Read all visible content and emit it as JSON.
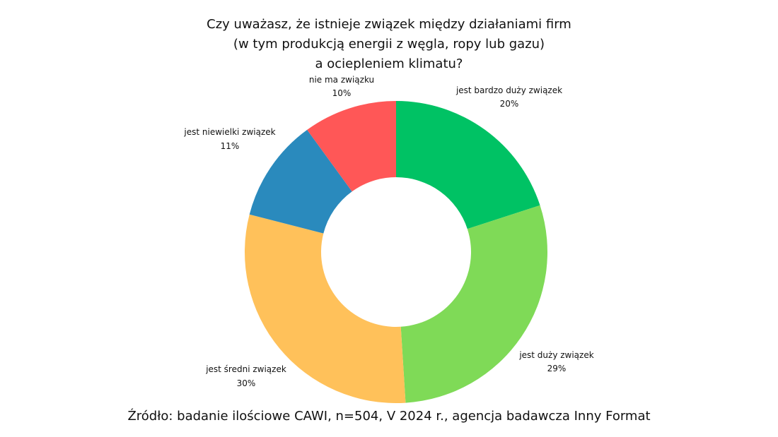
{
  "chart_data": {
    "type": "pie",
    "donut": true,
    "title_lines": [
      "Czy uważasz, że istnieje związek między działaniami firm",
      "(w tym produkcją energii z węgla, ropy lub gazu)",
      "a ociepleniem klimatu?"
    ],
    "categories": [
      "jest bardzo duży związek",
      "jest duży związek",
      "jest średni związek",
      "jest niewielki związek",
      "nie ma związku"
    ],
    "values": [
      20,
      29,
      30,
      11,
      10
    ],
    "value_labels": [
      "20%",
      "29%",
      "30%",
      "11%",
      "10%"
    ],
    "colors": [
      "#00C264",
      "#7FDA57",
      "#FFC15A",
      "#2A8ABD",
      "#FF5757"
    ],
    "source": "Źródło: badanie ilościowe CAWI, n=504, V 2024 r., agencja badawcza Inny Format",
    "legend": "none"
  }
}
